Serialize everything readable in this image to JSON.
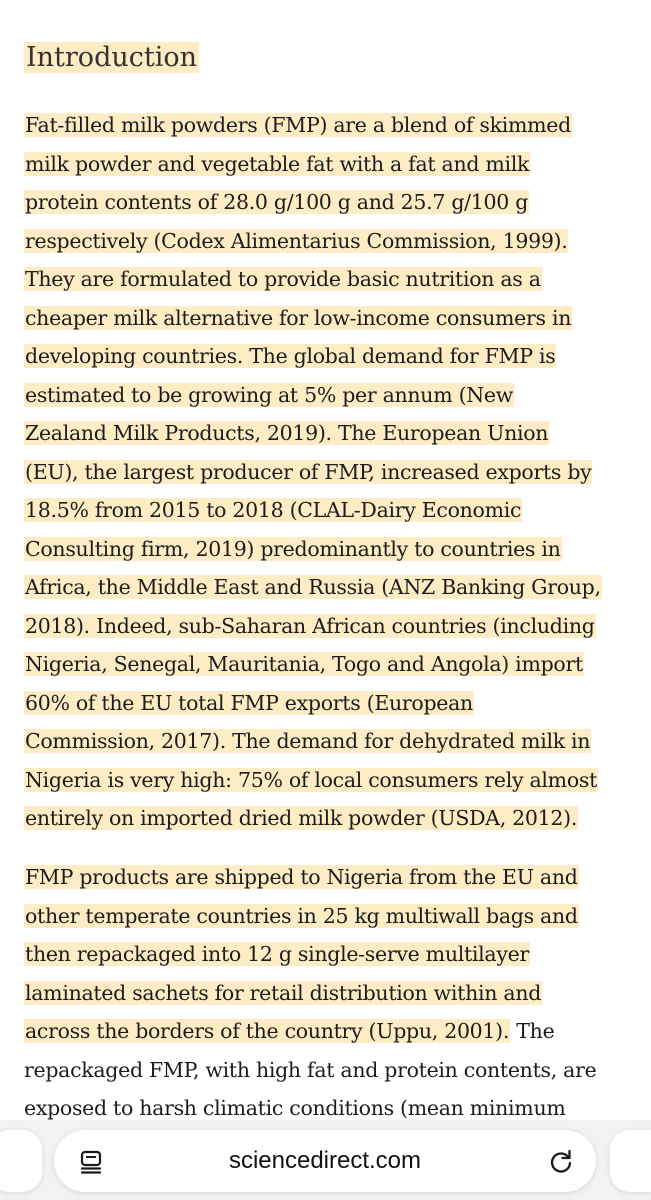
{
  "article": {
    "section_title": "Introduction",
    "paragraph_1": [
      "Fat-filled milk powders (FMP) are a blend of skimmed",
      "milk powder and vegetable fat with a fat and milk",
      "protein contents of 28.0 g/100 g and 25.7 g/100 g",
      "respectively (Codex Alimentarius Commission, 1999).",
      "They are formulated to provide basic nutrition as a",
      "cheaper milk alternative for low-income consumers in",
      "developing countries. The global demand for FMP is",
      "estimated to be growing at 5% per annum (New",
      "Zealand Milk Products, 2019). The European Union",
      "(EU), the largest producer of FMP, increased exports by",
      "18.5% from 2015 to 2018 (CLAL-Dairy Economic",
      "Consulting firm, 2019) predominantly to countries in",
      "Africa, the Middle East and Russia (ANZ Banking Group,",
      "2018). Indeed, sub-Saharan African countries (including",
      "Nigeria, Senegal, Mauritania, Togo and Angola) import",
      "60% of the EU total FMP exports (European",
      "Commission, 2017). The demand for dehydrated milk in",
      "Nigeria is very high: 75% of local consumers rely almost",
      "entirely on imported dried milk powder (USDA, 2012)."
    ],
    "paragraph_2": {
      "line_1": "FMP products are shipped to Nigeria from the EU and",
      "line_2": "other temperate countries in 25 kg multiwall bags and",
      "line_3": "then repackaged into 12 g single-serve multilayer",
      "line_4": "laminated sachets for retail distribution within and",
      "line_5_highlighted": "across the borders of the country (Uppu, 2001).",
      "line_5_rest": " The",
      "line_6": "repackaged FMP, with high fat and protein contents, are",
      "line_7": "exposed to harsh climatic conditions (mean minimum"
    },
    "highlight_color": "#fdecc4"
  },
  "browser": {
    "url": "sciencedirect.com",
    "left_icon": "reader-view-icon",
    "right_icon": "reload-icon"
  }
}
